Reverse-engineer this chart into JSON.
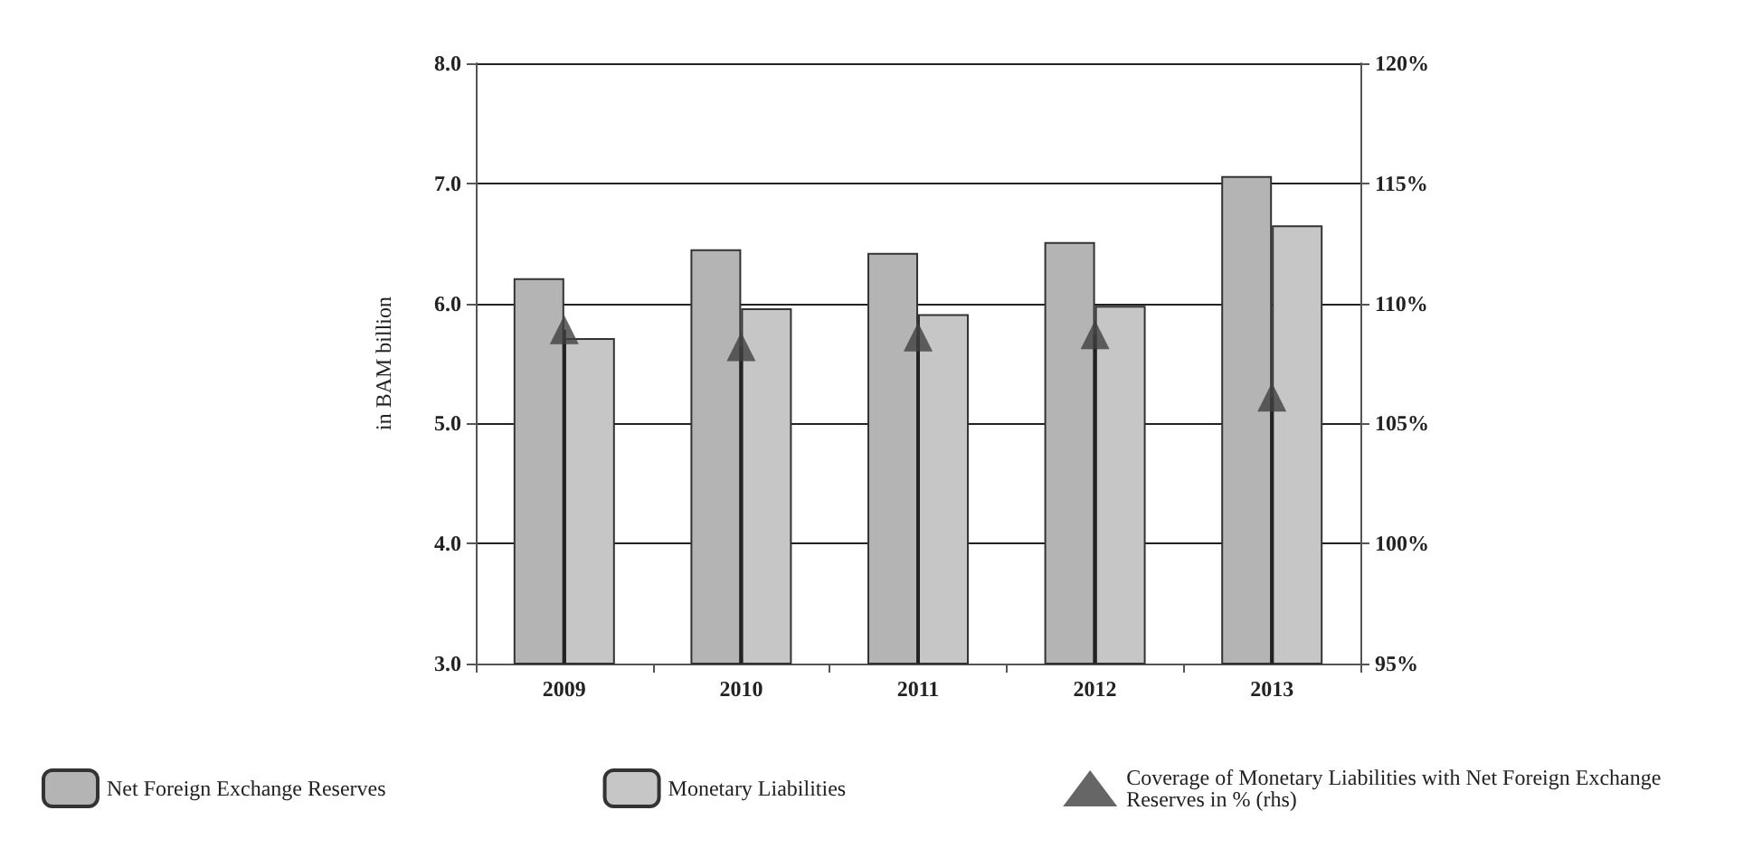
{
  "chart_data": {
    "type": "bar",
    "ylabel": "in BAM billion",
    "categories": [
      "2009",
      "2010",
      "2011",
      "2012",
      "2013"
    ],
    "series": [
      {
        "name": "Net Foreign Exchange Reserves",
        "color": "#b4b4b4",
        "values": [
          6.21,
          6.45,
          6.42,
          6.51,
          7.06
        ]
      },
      {
        "name": "Monetary Liabilities",
        "color": "#c6c6c6",
        "values": [
          5.71,
          5.96,
          5.91,
          5.98,
          6.65
        ]
      },
      {
        "name": "Coverage of Monetary Liabilities with Net Foreign Exchange Reserves in % (rhs)",
        "type": "scatter",
        "axis": "y2",
        "marker": "triangle",
        "color": "#404040",
        "values": [
          108.9,
          108.2,
          108.6,
          108.7,
          106.1
        ]
      }
    ],
    "ylim": [
      3,
      8
    ],
    "yticks": [
      {
        "value": 3,
        "label": "3.0"
      },
      {
        "value": 4,
        "label": "4.0"
      },
      {
        "value": 5,
        "label": "5.0"
      },
      {
        "value": 6,
        "label": "6.0"
      },
      {
        "value": 7,
        "label": "7.0"
      },
      {
        "value": 8,
        "label": "8.0"
      }
    ],
    "y2lim": [
      95,
      120
    ],
    "y2ticks": [
      {
        "value": 95,
        "label": "95%"
      },
      {
        "value": 100,
        "label": "100%"
      },
      {
        "value": 105,
        "label": "105%"
      },
      {
        "value": 110,
        "label": "110%"
      },
      {
        "value": 115,
        "label": "115%"
      },
      {
        "value": 120,
        "label": "120%"
      }
    ],
    "grid": "y",
    "legend": "bottom"
  }
}
